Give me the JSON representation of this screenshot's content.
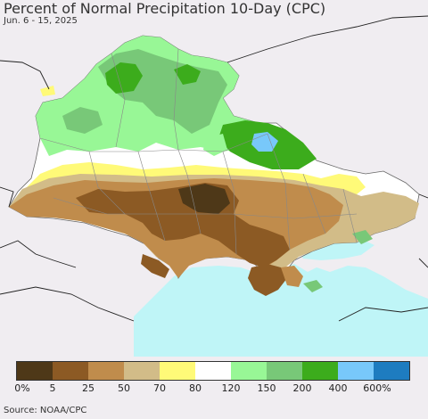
{
  "title": "Percent of Normal Precipitation 10-Day (CPC)",
  "subtitle": "Jun. 6 - 15, 2025",
  "legend": {
    "colors": [
      "#4e3818",
      "#8c5a24",
      "#c08c4c",
      "#d2bc88",
      "#fffa78",
      "#ffffff",
      "#98f796",
      "#78c878",
      "#3cac1c",
      "#78c8fa",
      "#1e7cc0"
    ],
    "labels": [
      "0%",
      "5",
      "25",
      "50",
      "70",
      "80",
      "120",
      "150",
      "200",
      "400",
      "600%"
    ]
  },
  "source": "Source: NOAA/CPC"
}
